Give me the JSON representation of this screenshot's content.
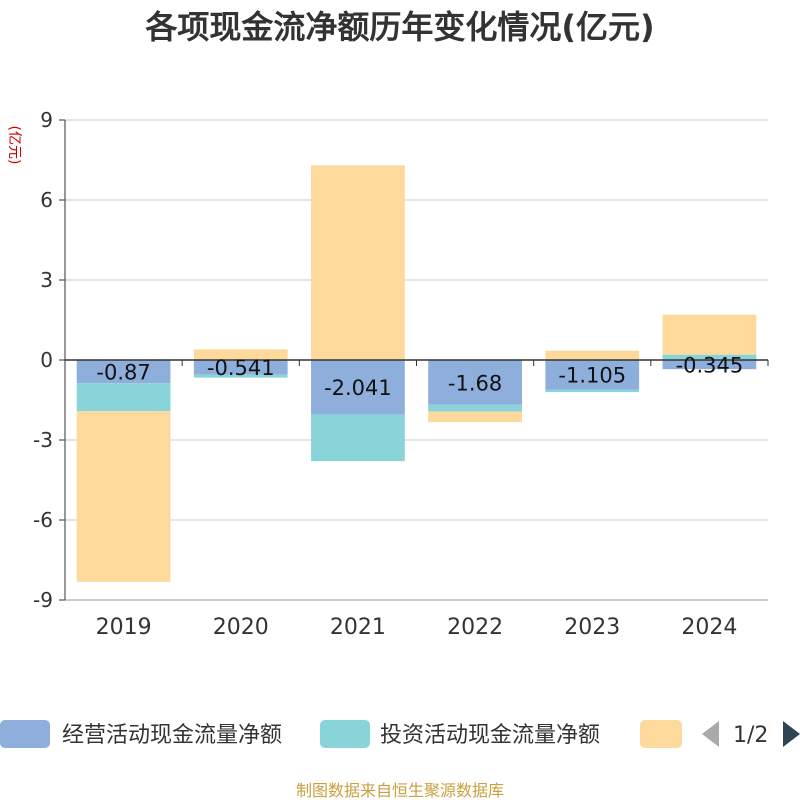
{
  "title": "各项现金流净额历年变化情况(亿元)",
  "unit": "(亿元)",
  "source": "制图数据来自恒生聚源数据库",
  "legend_page": "1/2",
  "colors": {
    "operating": "#8eaedc",
    "investing": "#88d4d8",
    "financing": "#fdd99b"
  },
  "chart_data": {
    "type": "bar",
    "stacked": true,
    "title": "各项现金流净额历年变化情况(亿元)",
    "ylabel": "(亿元)",
    "categories": [
      "2019",
      "2020",
      "2021",
      "2022",
      "2023",
      "2024"
    ],
    "ylim": [
      -9,
      9
    ],
    "yticks": [
      9,
      6,
      3,
      0,
      -3,
      -6,
      -9
    ],
    "grid": true,
    "legend_position": "bottom",
    "series": [
      {
        "name": "经营活动现金流量净额",
        "color": "#8eaedc",
        "values": [
          -0.87,
          -0.541,
          -2.041,
          -1.68,
          -1.105,
          -0.345
        ],
        "labels": [
          "-0.87",
          "-0.541",
          "-2.041",
          "-1.68",
          "-1.105",
          "-0.345"
        ]
      },
      {
        "name": "投资活动现金流量净额",
        "color": "#88d4d8",
        "values": [
          -1.05,
          -0.12,
          -1.75,
          -0.25,
          -0.1,
          0.2
        ]
      },
      {
        "name": "",
        "color": "#fdd99b",
        "values": [
          -6.4,
          0.4,
          7.3,
          -0.4,
          0.35,
          1.5
        ]
      }
    ]
  }
}
